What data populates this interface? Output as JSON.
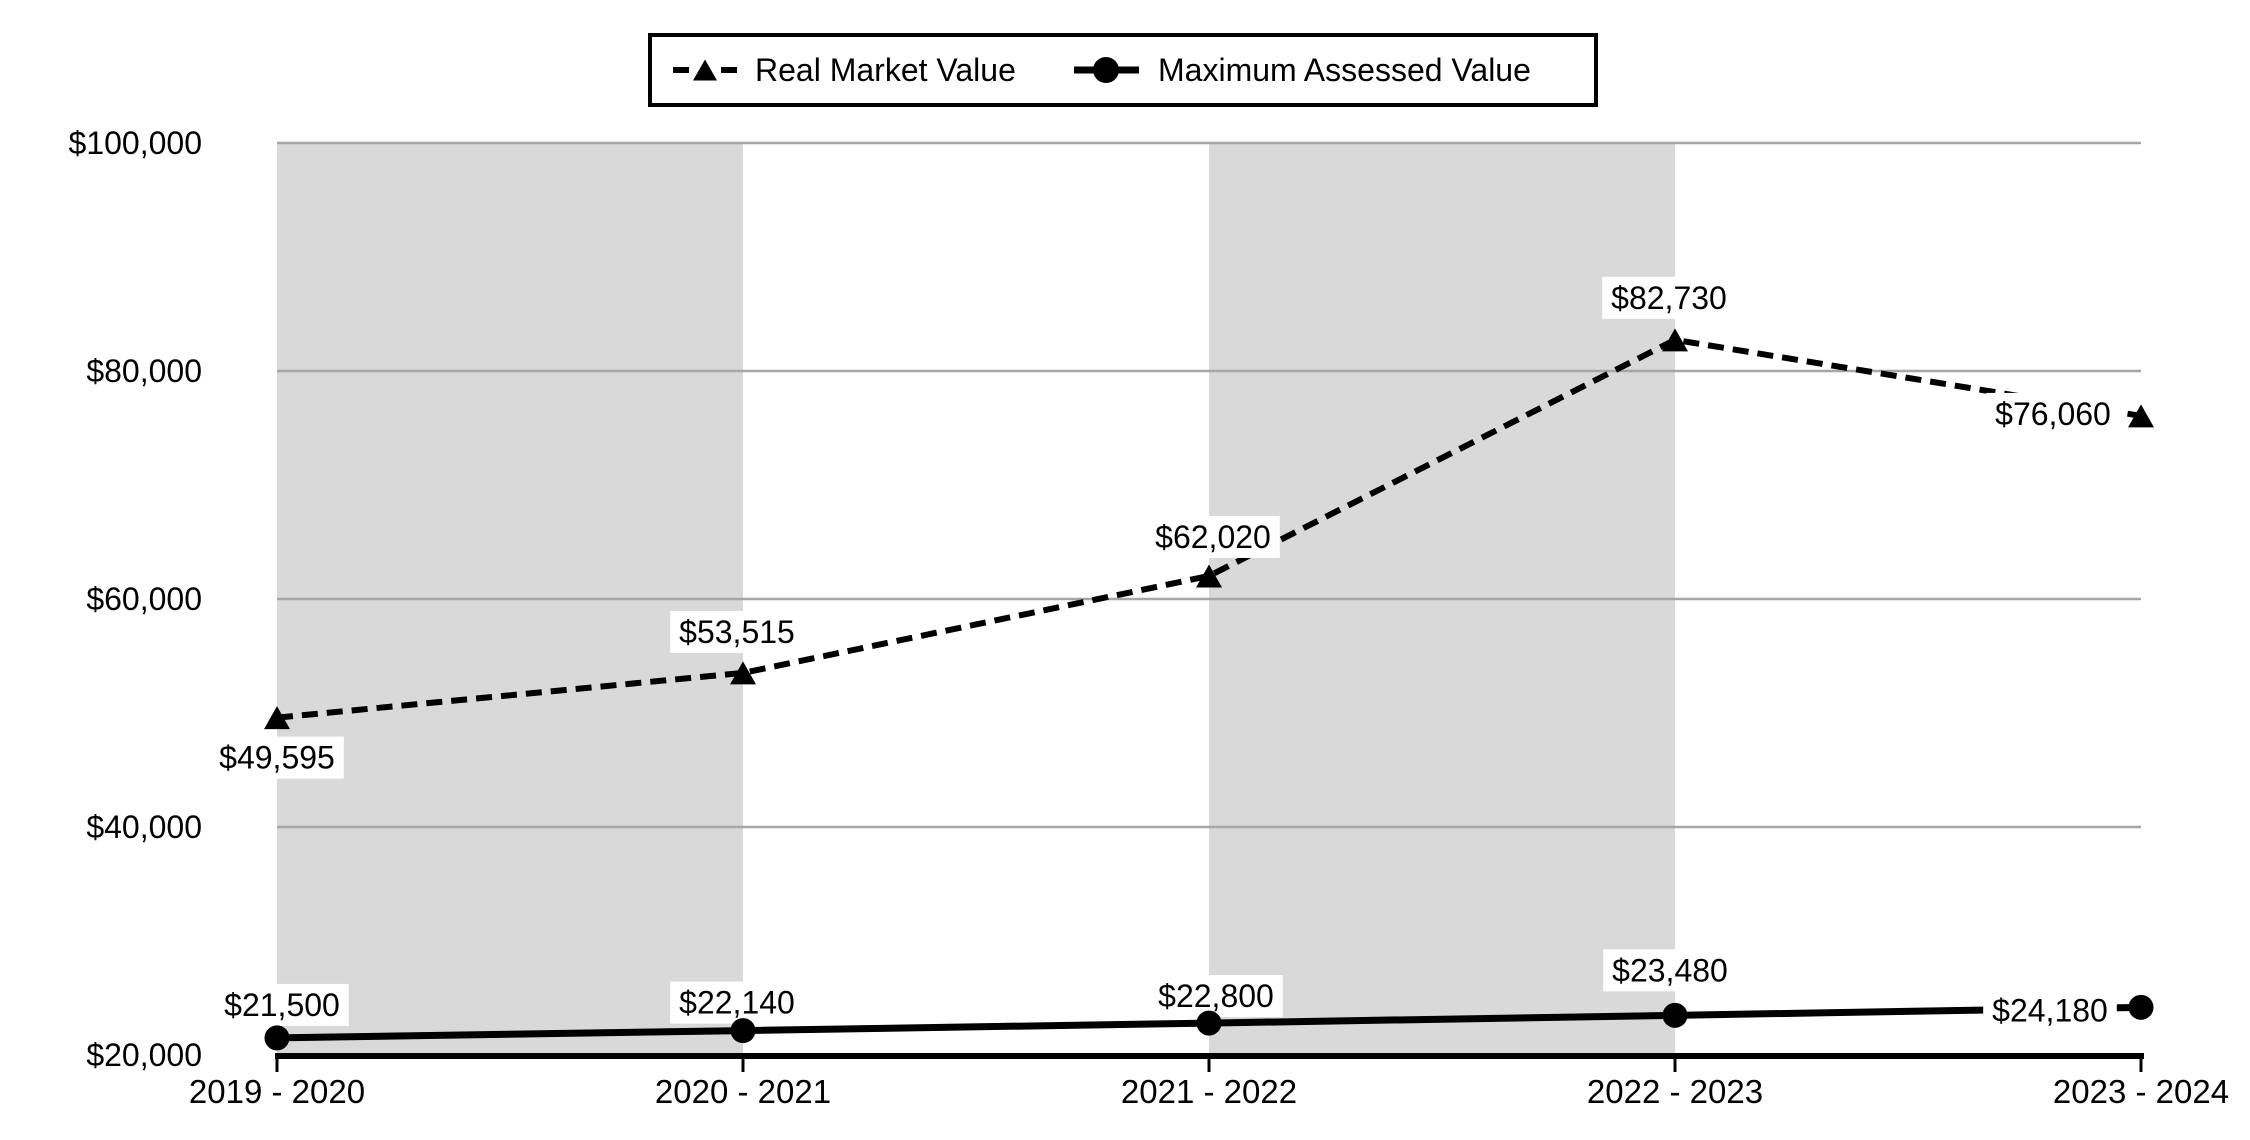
{
  "chart_data": {
    "type": "line",
    "title": "",
    "categories": [
      "2019 - 2020",
      "2020 - 2021",
      "2021 - 2022",
      "2022 - 2023",
      "2023 - 2024"
    ],
    "series": [
      {
        "name": "Real Market Value",
        "line_style": "dashed",
        "marker": "triangle",
        "values": [
          49595,
          53515,
          62020,
          82730,
          76060
        ],
        "data_labels": [
          "$49,595",
          "$53,515",
          "$62,020",
          "$82,730",
          "$76,060"
        ],
        "label_positions": [
          "below",
          "above",
          "above",
          "above",
          "left"
        ]
      },
      {
        "name": "Maximum Assessed Value",
        "line_style": "solid",
        "marker": "circle",
        "values": [
          21500,
          22140,
          22800,
          23480,
          24180
        ],
        "data_labels": [
          "$21,500",
          "$22,140",
          "$22,800",
          "$23,480",
          "$24,180"
        ],
        "label_positions": [
          "above",
          "above",
          "above",
          "above",
          "left"
        ]
      }
    ],
    "y_axis": {
      "min": 20000,
      "max": 100000,
      "step": 20000,
      "tick_labels": [
        "$20,000",
        "$40,000",
        "$60,000",
        "$80,000",
        "$100,000"
      ]
    },
    "x_axis": {
      "tick_labels": [
        "2019 - 2020",
        "2020 - 2021",
        "2021 - 2022",
        "2022 - 2023",
        "2023 - 2024"
      ]
    },
    "legend": {
      "position": "top",
      "entries": [
        "Real Market Value",
        "Maximum Assessed Value"
      ]
    },
    "grid": "horizontal",
    "plot_bands": "alternating vertical bands between category ticks, starting shaded",
    "colors": {
      "series": "#000000",
      "gridline": "#a6a6a6",
      "band": "#d9d9d9",
      "background": "#ffffff",
      "label_background": "#ffffff"
    }
  }
}
